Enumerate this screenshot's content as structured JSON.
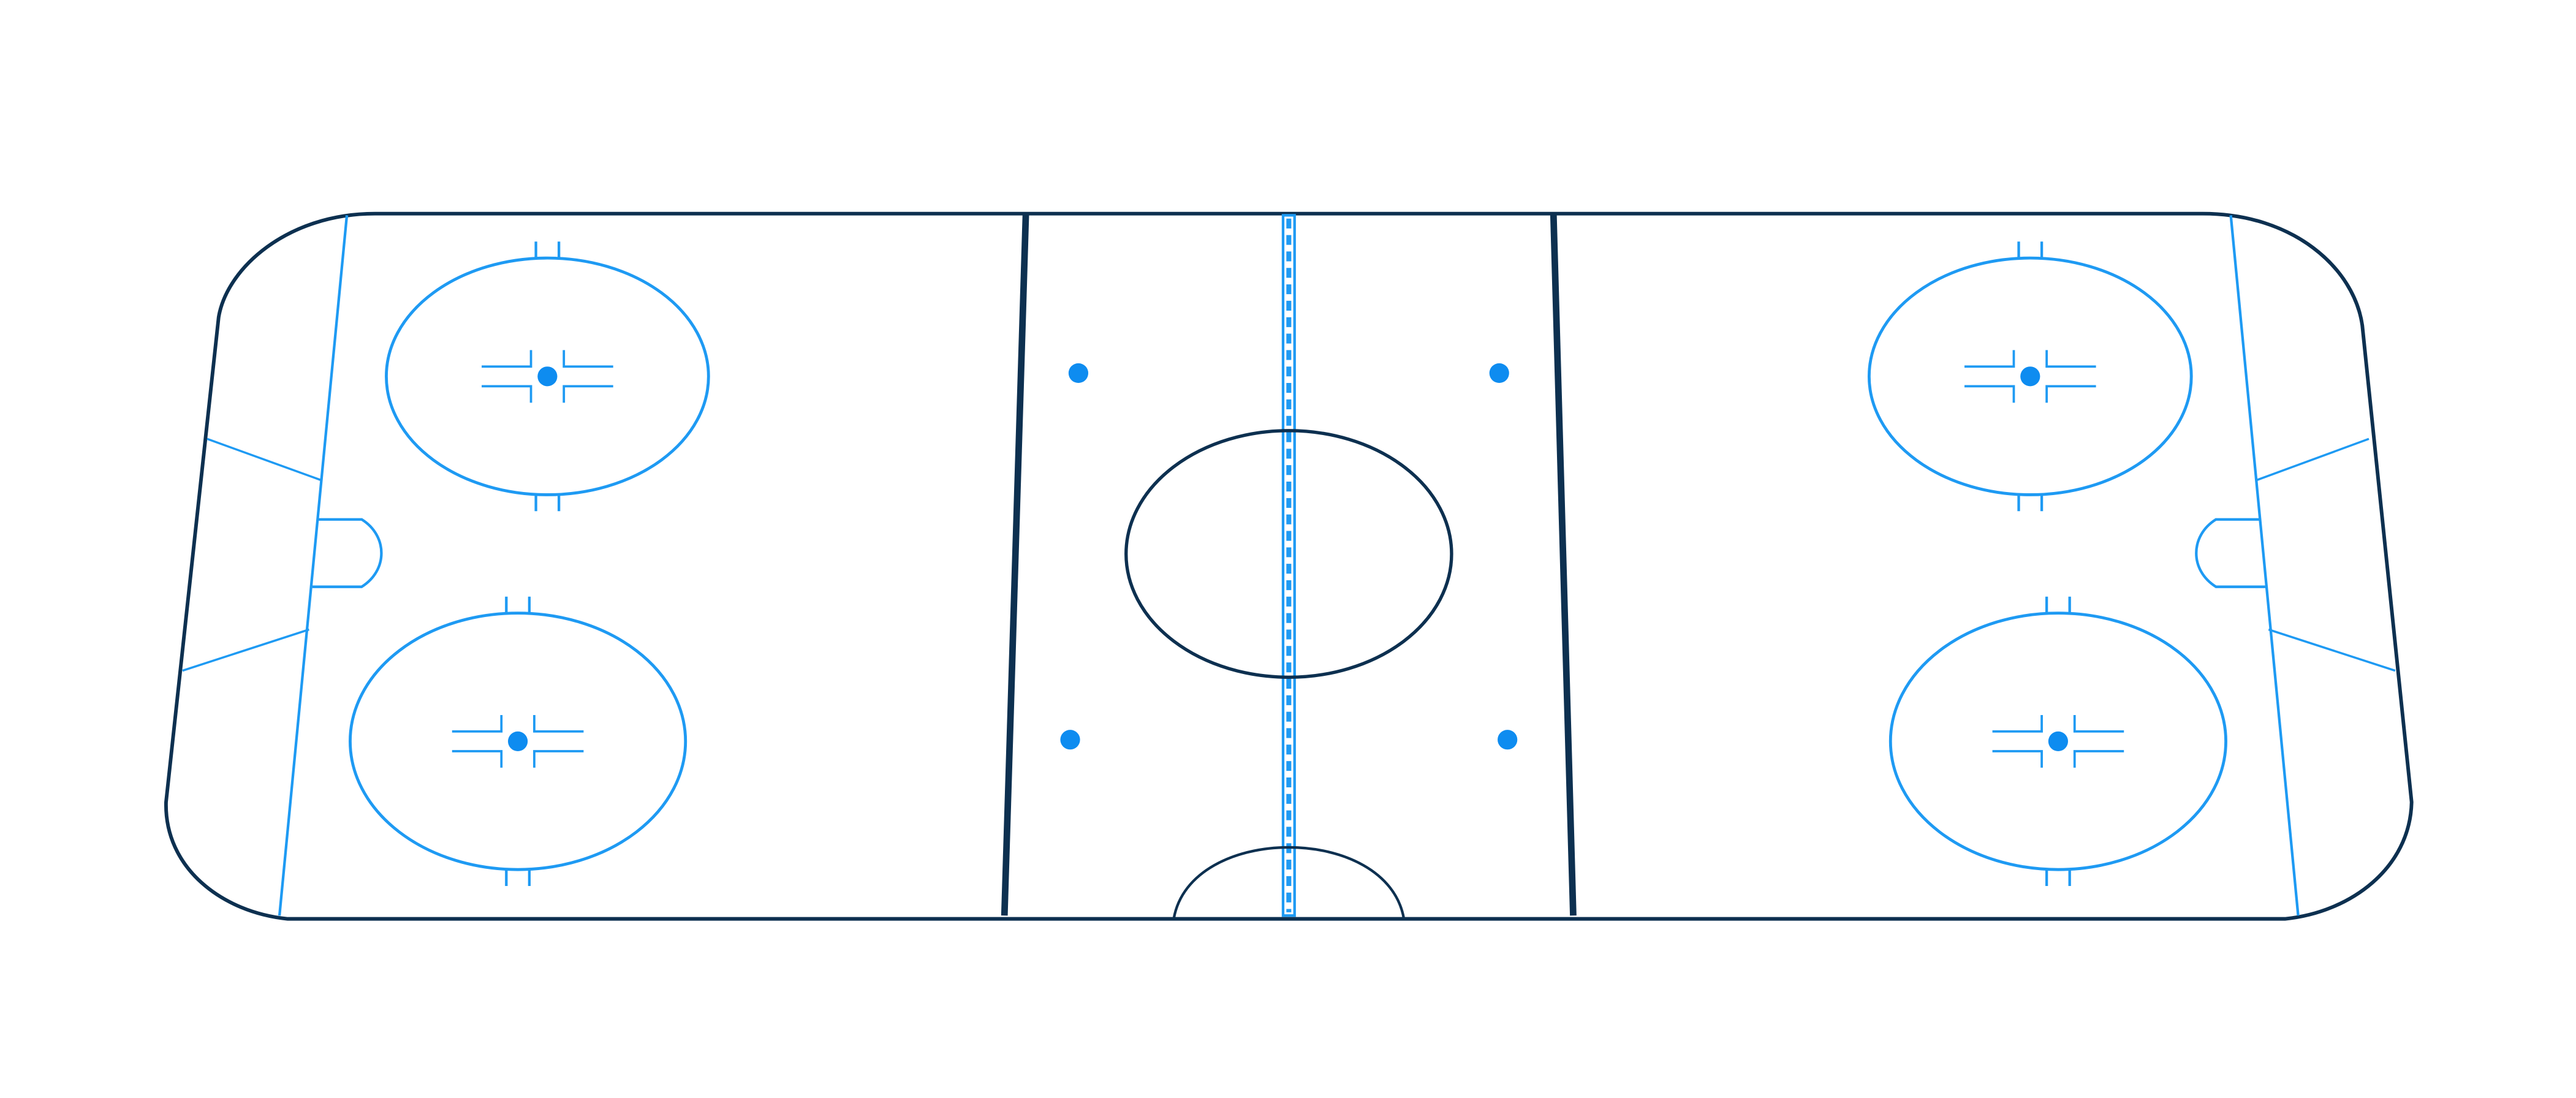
{
  "diagram": {
    "subject": "hockey-rink",
    "view": "perspective",
    "colors": {
      "background": "#ffffff",
      "board_line": "#0d3050",
      "marking_line": "#1e9af3",
      "face_off_dot": "#0e8cf0"
    },
    "zones": [
      "defensive-zone",
      "neutral-zone",
      "offensive-zone"
    ],
    "face_off_circles": 5,
    "face_off_dots": 4,
    "goal_creases": 2
  }
}
